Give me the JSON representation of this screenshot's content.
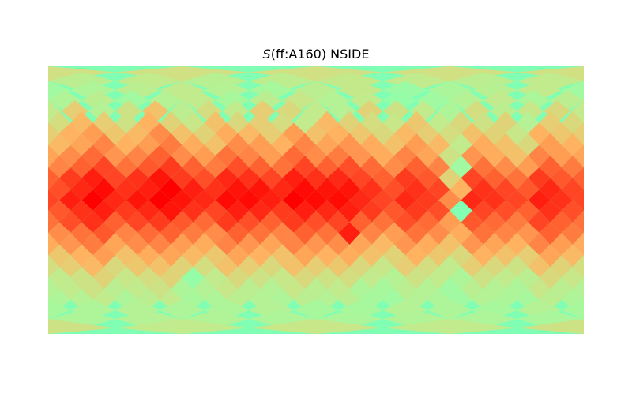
{
  "chart_data": {
    "type": "heatmap",
    "projection": "cartesian",
    "title": {
      "symbol": "S",
      "rest": "(ff:A160) NSIDE"
    },
    "xlabel": "",
    "ylabel": "",
    "colormap": "rainbow",
    "colorbar": false,
    "grid": false,
    "axes_visible": false,
    "longitude_range": [
      -180,
      180
    ],
    "latitude_range": [
      -90,
      90
    ],
    "value_range": [
      0,
      1
    ],
    "healpix_rings": [
      {
        "lat": 86,
        "values": [
          0.45,
          0.45,
          0.45,
          0.45
        ]
      },
      {
        "lat": 80,
        "values": [
          0.38,
          0.4,
          0.37,
          0.39,
          0.41,
          0.4,
          0.38,
          0.4
        ]
      },
      {
        "lat": 74,
        "values": [
          0.3,
          0.34,
          0.38,
          0.4,
          0.36,
          0.32,
          0.38,
          0.41,
          0.28,
          0.33,
          0.37,
          0.4
        ]
      },
      {
        "lat": 67,
        "values": [
          0.35,
          0.38,
          0.3,
          0.36,
          0.4,
          0.32,
          0.38,
          0.42,
          0.36,
          0.4,
          0.26,
          0.3,
          0.36,
          0.4,
          0.33,
          0.38
        ]
      },
      {
        "lat": 60,
        "values": [
          0.4,
          0.52,
          0.36,
          0.44,
          0.56,
          0.38,
          0.46,
          0.4,
          0.52,
          0.48,
          0.4,
          0.36,
          0.5,
          0.44,
          0.4,
          0.34,
          0.46,
          0.38,
          0.42,
          0.48
        ]
      },
      {
        "lat": 52,
        "values": [
          0.46,
          0.58,
          0.52,
          0.44,
          0.6,
          0.5,
          0.42,
          0.56,
          0.48,
          0.52,
          0.46,
          0.4,
          0.58,
          0.5,
          0.46,
          0.42,
          0.54,
          0.4,
          0.48,
          0.44,
          0.5,
          0.36,
          0.52,
          0.48
        ]
      },
      {
        "lat": 45,
        "values": [
          0.52,
          0.6,
          0.66,
          0.54,
          0.58,
          0.7,
          0.56,
          0.5,
          0.62,
          0.58,
          0.52,
          0.66,
          0.56,
          0.6,
          0.54,
          0.48,
          0.58,
          0.52,
          0.46,
          0.56,
          0.5,
          0.42,
          0.6,
          0.54
        ]
      },
      {
        "lat": 37,
        "values": [
          0.58,
          0.64,
          0.72,
          0.6,
          0.66,
          0.74,
          0.62,
          0.56,
          0.7,
          0.66,
          0.6,
          0.72,
          0.64,
          0.68,
          0.62,
          0.56,
          0.66,
          0.58,
          0.4,
          0.62,
          0.56,
          0.48,
          0.66,
          0.6
        ]
      },
      {
        "lat": 30,
        "values": [
          0.64,
          0.7,
          0.78,
          0.68,
          0.72,
          0.8,
          0.7,
          0.66,
          0.76,
          0.72,
          0.66,
          0.78,
          0.7,
          0.74,
          0.68,
          0.62,
          0.72,
          0.64,
          0.44,
          0.68,
          0.62,
          0.56,
          0.72,
          0.66
        ]
      },
      {
        "lat": 22,
        "values": [
          0.72,
          0.8,
          0.86,
          0.76,
          0.82,
          0.88,
          0.8,
          0.74,
          0.84,
          0.8,
          0.76,
          0.86,
          0.8,
          0.84,
          0.78,
          0.7,
          0.8,
          0.72,
          0.3,
          0.76,
          0.7,
          0.66,
          0.8,
          0.74
        ]
      },
      {
        "lat": 15,
        "values": [
          0.8,
          0.88,
          0.94,
          0.86,
          0.9,
          0.96,
          0.88,
          0.84,
          0.92,
          0.9,
          0.86,
          0.94,
          0.9,
          0.92,
          0.86,
          0.8,
          0.88,
          0.82,
          0.5,
          0.86,
          0.8,
          0.76,
          0.88,
          0.82
        ]
      },
      {
        "lat": 7,
        "values": [
          0.84,
          0.92,
          0.98,
          0.9,
          0.94,
          1.0,
          0.94,
          0.9,
          0.96,
          0.96,
          0.92,
          0.98,
          0.96,
          0.96,
          0.9,
          0.84,
          0.9,
          0.86,
          0.6,
          0.9,
          0.86,
          0.82,
          0.92,
          0.86
        ]
      },
      {
        "lat": 0,
        "values": [
          0.86,
          0.94,
          1.0,
          0.92,
          0.96,
          1.0,
          0.96,
          0.92,
          0.98,
          0.98,
          0.94,
          1.0,
          0.98,
          0.98,
          0.92,
          0.86,
          0.92,
          0.88,
          0.7,
          0.92,
          0.9,
          0.86,
          0.94,
          0.9
        ]
      },
      {
        "lat": -7,
        "values": [
          0.82,
          0.9,
          0.94,
          0.88,
          0.92,
          0.96,
          0.9,
          0.86,
          0.94,
          0.92,
          0.88,
          0.94,
          0.92,
          0.94,
          0.88,
          0.82,
          0.88,
          0.84,
          0.2,
          0.86,
          0.84,
          0.8,
          0.9,
          0.84
        ]
      },
      {
        "lat": -15,
        "values": [
          0.76,
          0.84,
          0.9,
          0.8,
          0.86,
          0.88,
          0.82,
          0.78,
          0.88,
          0.84,
          0.8,
          0.88,
          0.84,
          0.86,
          0.8,
          0.76,
          0.84,
          0.78,
          0.66,
          0.82,
          0.78,
          0.74,
          0.86,
          0.8
        ]
      },
      {
        "lat": -22,
        "values": [
          0.7,
          0.76,
          0.82,
          0.72,
          0.78,
          0.8,
          0.74,
          0.7,
          0.8,
          0.76,
          0.72,
          0.8,
          0.76,
          0.94,
          0.72,
          0.66,
          0.76,
          0.7,
          0.62,
          0.76,
          0.72,
          0.68,
          0.8,
          0.74
        ]
      },
      {
        "lat": -30,
        "values": [
          0.62,
          0.68,
          0.74,
          0.64,
          0.7,
          0.72,
          0.66,
          0.62,
          0.72,
          0.68,
          0.64,
          0.72,
          0.68,
          0.7,
          0.64,
          0.58,
          0.68,
          0.62,
          0.56,
          0.68,
          0.64,
          0.6,
          0.72,
          0.66
        ]
      },
      {
        "lat": -37,
        "values": [
          0.54,
          0.6,
          0.66,
          0.56,
          0.62,
          0.64,
          0.58,
          0.54,
          0.64,
          0.6,
          0.56,
          0.64,
          0.6,
          0.62,
          0.56,
          0.5,
          0.6,
          0.54,
          0.48,
          0.6,
          0.56,
          0.52,
          0.64,
          0.58
        ]
      },
      {
        "lat": -45,
        "values": [
          0.46,
          0.52,
          0.58,
          0.48,
          0.54,
          0.56,
          0.5,
          0.46,
          0.56,
          0.52,
          0.48,
          0.56,
          0.52,
          0.54,
          0.48,
          0.42,
          0.52,
          0.46,
          0.4,
          0.52,
          0.48,
          0.44,
          0.56,
          0.5
        ]
      },
      {
        "lat": -52,
        "values": [
          0.4,
          0.44,
          0.5,
          0.42,
          0.46,
          0.5,
          0.26,
          0.4,
          0.48,
          0.44,
          0.42,
          0.48,
          0.44,
          0.46,
          0.4,
          0.36,
          0.44,
          0.4,
          0.34,
          0.44,
          0.4,
          0.38,
          0.48,
          0.42
        ]
      },
      {
        "lat": -60,
        "values": [
          0.36,
          0.4,
          0.44,
          0.38,
          0.4,
          0.44,
          0.34,
          0.36,
          0.42,
          0.38,
          0.36,
          0.42,
          0.38,
          0.4,
          0.34,
          0.32,
          0.38,
          0.36,
          0.3,
          0.38,
          0.36,
          0.34,
          0.42,
          0.38
        ]
      },
      {
        "lat": -67,
        "values": [
          0.34,
          0.36,
          0.4,
          0.34,
          0.38,
          0.4,
          0.32,
          0.34,
          0.38,
          0.36,
          0.34,
          0.38,
          0.36,
          0.38,
          0.32,
          0.3,
          0.36,
          0.34,
          0.3,
          0.36,
          0.34,
          0.32,
          0.38,
          0.34
        ]
      },
      {
        "lat": -74,
        "values": [
          0.32,
          0.34,
          0.36,
          0.34,
          0.34,
          0.36,
          0.32,
          0.32,
          0.36,
          0.34,
          0.32,
          0.36
        ]
      },
      {
        "lat": -80,
        "values": [
          0.34,
          0.36,
          0.35,
          0.34,
          0.33,
          0.35,
          0.34,
          0.33
        ]
      },
      {
        "lat": -86,
        "values": [
          0.44,
          0.4,
          0.42,
          0.4
        ]
      }
    ]
  }
}
